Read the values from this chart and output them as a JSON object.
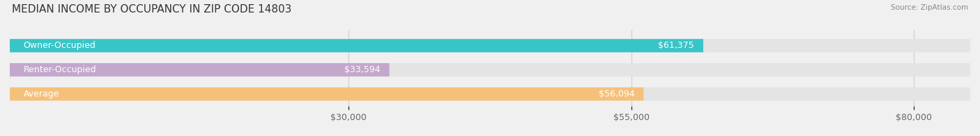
{
  "title": "MEDIAN INCOME BY OCCUPANCY IN ZIP CODE 14803",
  "source": "Source: ZipAtlas.com",
  "categories": [
    "Owner-Occupied",
    "Renter-Occupied",
    "Average"
  ],
  "values": [
    61375,
    33594,
    56094
  ],
  "bar_colors": [
    "#38C5C8",
    "#C4A8CC",
    "#F5C17A"
  ],
  "value_labels": [
    "$61,375",
    "$33,594",
    "$56,094"
  ],
  "x_ticks": [
    30000,
    55000,
    80000
  ],
  "x_tick_labels": [
    "$30,000",
    "$55,000",
    "$80,000"
  ],
  "xlim": [
    0,
    85000
  ],
  "background_color": "#f0f0f0",
  "bar_bg_color": "#e4e4e4",
  "title_fontsize": 11,
  "tick_fontsize": 9,
  "label_fontsize": 9
}
